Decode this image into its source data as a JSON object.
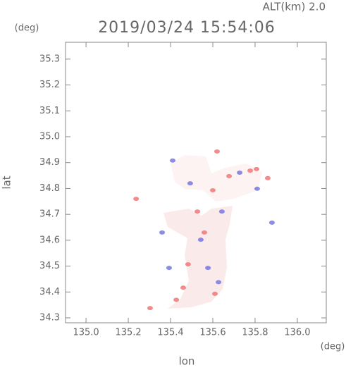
{
  "chart_data": {
    "type": "scatter",
    "title": "2019/03/24 15:54:06",
    "subtitle": "ALT(km) 2.0",
    "x_label": "lon",
    "y_label": "lat",
    "x_unit": "(deg)",
    "y_unit": "(deg)",
    "xlim": [
      134.903,
      136.137
    ],
    "ylim": [
      34.281,
      35.365
    ],
    "xticks": [
      {
        "value": 135,
        "label": "135.0"
      },
      135.2,
      135.4,
      135.6,
      135.8,
      {
        "value": 136,
        "label": "136.0"
      }
    ],
    "yticks": [
      34.3,
      34.4,
      34.5,
      34.6,
      34.7,
      34.8,
      34.9,
      {
        "value": 35,
        "label": "35.0"
      },
      35.1,
      35.2,
      35.3
    ],
    "series": [
      {
        "color": "#f07878",
        "x": [
          135.427,
          135.303,
          135.237,
          135.777,
          135.6,
          135.807,
          135.86,
          135.483,
          135.56,
          135.61,
          135.527,
          135.46,
          135.677,
          135.62
        ],
        "values": [
          34.37,
          34.338,
          34.76,
          34.869,
          34.793,
          34.875,
          34.84,
          34.507,
          34.63,
          34.393,
          34.711,
          34.417,
          34.848,
          34.943
        ]
      },
      {
        "color": "#7878e0",
        "x": [
          135.88,
          135.36,
          135.577,
          135.543,
          135.643,
          135.727,
          135.41,
          135.493,
          135.627,
          135.393,
          135.81
        ],
        "values": [
          34.668,
          34.63,
          34.493,
          34.602,
          34.711,
          34.861,
          34.908,
          34.82,
          34.438,
          34.493,
          34.799
        ]
      }
    ]
  }
}
